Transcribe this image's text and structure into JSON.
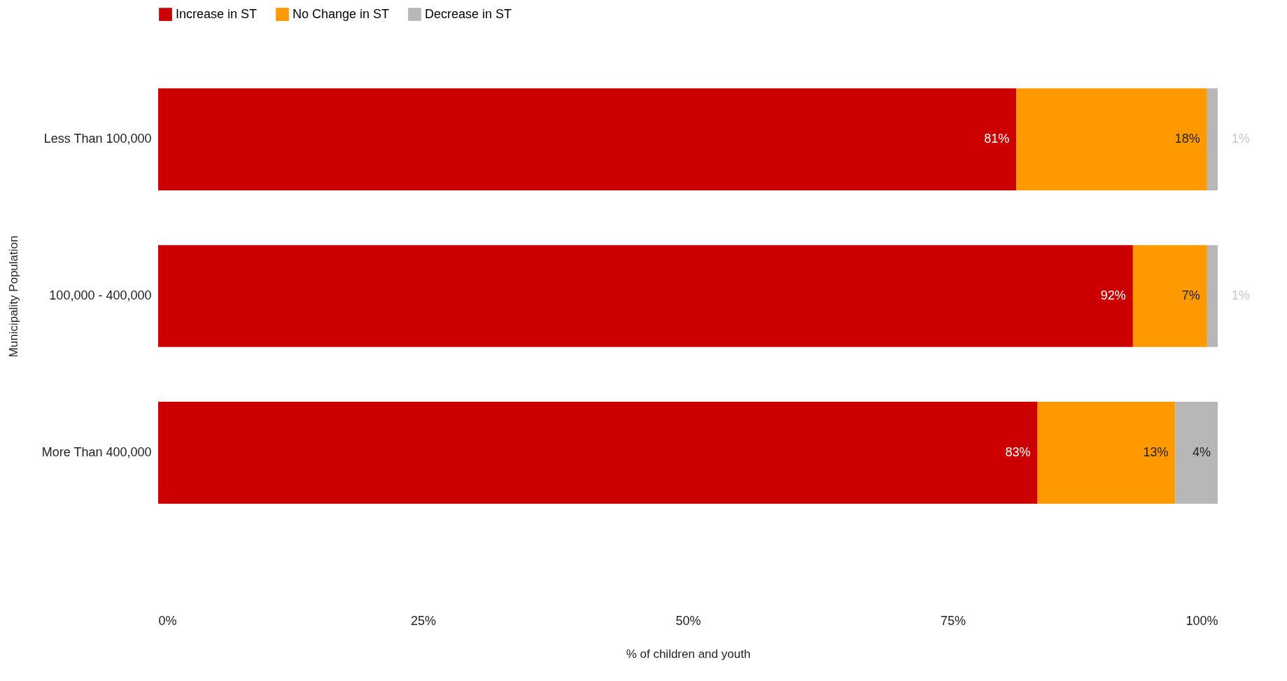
{
  "chart_data": {
    "type": "bar",
    "orientation": "horizontal",
    "stacked": true,
    "xlabel": "% of children and youth",
    "ylabel": "Municipality Population",
    "categories": [
      "Less Than 100,000",
      "100,000 - 400,000",
      "More Than 400,000"
    ],
    "series": [
      {
        "name": "Increase in ST",
        "color": "#cc0000",
        "values": [
          81,
          92,
          83
        ],
        "value_labels": [
          "81%",
          "92%",
          "83%"
        ]
      },
      {
        "name": "No Change in ST",
        "color": "#ff9900",
        "values": [
          18,
          7,
          13
        ],
        "value_labels": [
          "18%",
          "7%",
          "13%"
        ]
      },
      {
        "name": "Decrease in ST",
        "color": "#b7b7b7",
        "values": [
          1,
          1,
          4
        ],
        "value_labels": [
          "1%",
          "1%",
          "4%"
        ]
      }
    ],
    "xlim": [
      0,
      100
    ],
    "xticks": [
      {
        "value": 0,
        "label": "0%"
      },
      {
        "value": 25,
        "label": "25%"
      },
      {
        "value": 50,
        "label": "50%"
      },
      {
        "value": 75,
        "label": "75%"
      },
      {
        "value": 100,
        "label": "100%"
      }
    ],
    "grid": false,
    "legend": "top"
  }
}
